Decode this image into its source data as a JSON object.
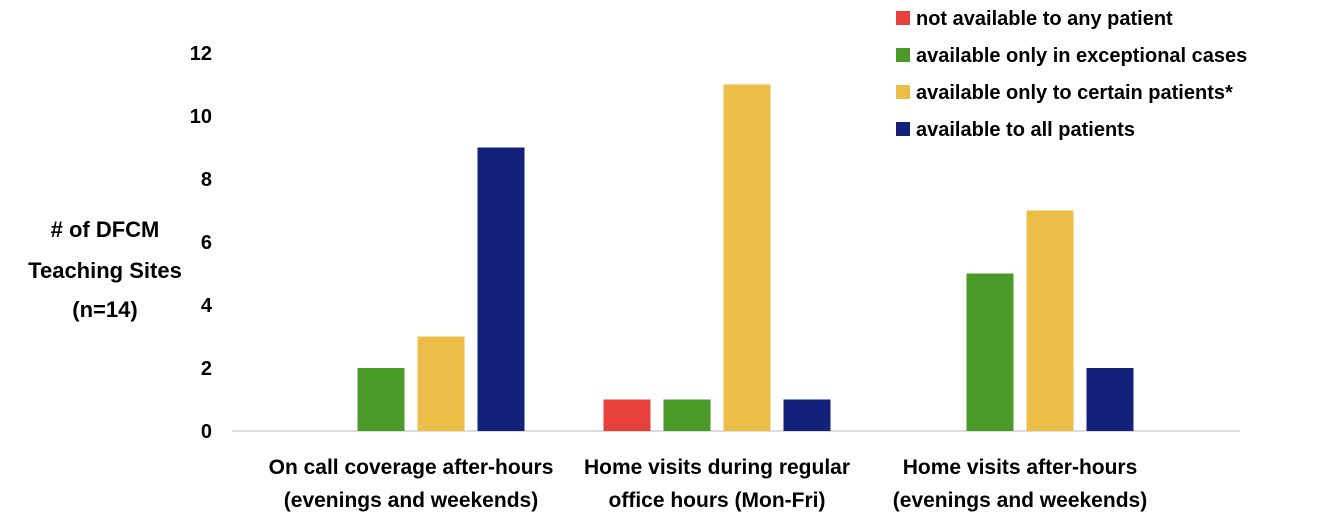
{
  "chart_data": {
    "type": "bar",
    "title": "",
    "ylabel": [
      "# of DFCM",
      "Teaching Sites",
      "(n=14)"
    ],
    "xlabel": "",
    "ylim": [
      0,
      12
    ],
    "yticks": [
      0,
      2,
      4,
      6,
      8,
      10,
      12
    ],
    "grid": false,
    "legend_position": "top-right",
    "categories": [
      [
        "On call coverage after-hours",
        "(evenings and weekends)"
      ],
      [
        "Home visits during regular",
        "office hours (Mon-Fri)"
      ],
      [
        "Home visits after-hours",
        "(evenings and weekends)"
      ]
    ],
    "series": [
      {
        "name": "not available to any patient",
        "color": "#e8413c",
        "values": [
          0,
          1,
          0
        ]
      },
      {
        "name": "available only in exceptional cases",
        "color": "#4a9a2a",
        "values": [
          2,
          1,
          5
        ]
      },
      {
        "name": "available only to certain patients*",
        "color": "#ecbd47",
        "values": [
          3,
          11,
          7
        ]
      },
      {
        "name": "available to all patients",
        "color": "#13217a",
        "values": [
          9,
          1,
          2
        ]
      }
    ]
  }
}
